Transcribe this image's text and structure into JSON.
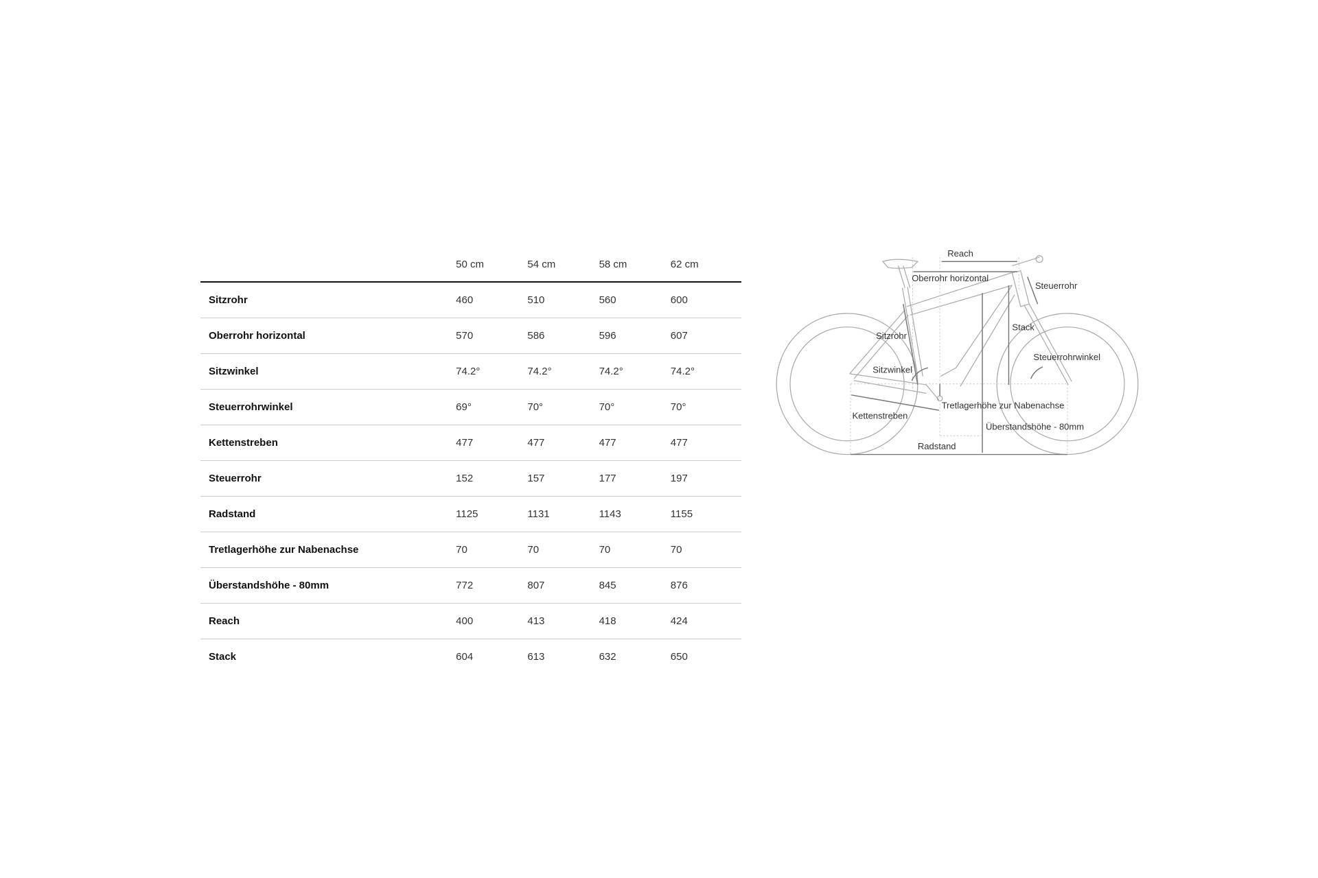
{
  "table": {
    "columns": [
      "50 cm",
      "54 cm",
      "58 cm",
      "62 cm"
    ],
    "rows": [
      {
        "label": "Sitzrohr",
        "values": [
          "460",
          "510",
          "560",
          "600"
        ]
      },
      {
        "label": "Oberrohr horizontal",
        "values": [
          "570",
          "586",
          "596",
          "607"
        ]
      },
      {
        "label": "Sitzwinkel",
        "values": [
          "74.2°",
          "74.2°",
          "74.2°",
          "74.2°"
        ]
      },
      {
        "label": "Steuerrohrwinkel",
        "values": [
          "69°",
          "70°",
          "70°",
          "70°"
        ]
      },
      {
        "label": "Kettenstreben",
        "values": [
          "477",
          "477",
          "477",
          "477"
        ]
      },
      {
        "label": "Steuerrohr",
        "values": [
          "152",
          "157",
          "177",
          "197"
        ]
      },
      {
        "label": "Radstand",
        "values": [
          "1125",
          "1131",
          "1143",
          "1155"
        ]
      },
      {
        "label": "Tretlagerhöhe zur Nabenachse",
        "values": [
          "70",
          "70",
          "70",
          "70"
        ]
      },
      {
        "label": "Überstandshöhe - 80mm",
        "values": [
          "772",
          "807",
          "845",
          "876"
        ]
      },
      {
        "label": "Reach",
        "values": [
          "400",
          "413",
          "418",
          "424"
        ]
      },
      {
        "label": "Stack",
        "values": [
          "604",
          "613",
          "632",
          "650"
        ]
      }
    ]
  },
  "diagram": {
    "labels": {
      "reach": "Reach",
      "oberrohr": "Oberrohr horizontal",
      "steuerrohr": "Steuerrohr",
      "stack": "Stack",
      "sitzrohr": "Sitzrohr",
      "steuerrohrwinkel": "Steuerrohrwinkel",
      "sitzwinkel": "Sitzwinkel",
      "tretlager": "Tretlagerhöhe zur Nabenachse",
      "kettenstreben": "Kettenstreben",
      "ueberstand": "Überstandshöhe - 80mm",
      "radstand": "Radstand"
    }
  }
}
